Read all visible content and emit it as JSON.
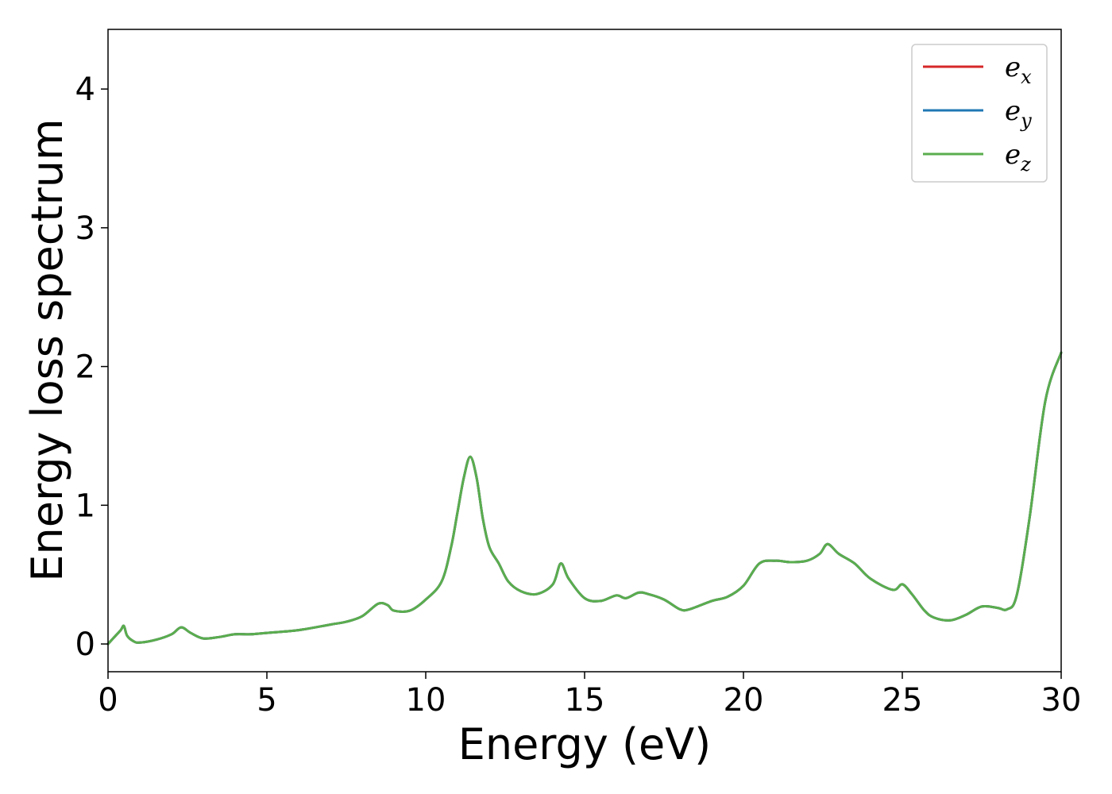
{
  "chart_data": {
    "type": "line",
    "title": "",
    "xlabel": "Energy (eV)",
    "ylabel": "Energy loss spectrum",
    "xlim": [
      0,
      30
    ],
    "ylim": [
      -0.2,
      4.43
    ],
    "xticks": [
      0,
      5,
      10,
      15,
      20,
      25,
      30
    ],
    "xtick_labels": [
      "0",
      "5",
      "10",
      "15",
      "20",
      "25",
      "30"
    ],
    "yticks": [
      0,
      1,
      2,
      3,
      4
    ],
    "ytick_labels": [
      "0",
      "1",
      "2",
      "3",
      "4"
    ],
    "grid": false,
    "legend_position": "top-right",
    "x": [
      0,
      0.2,
      0.4,
      0.5,
      0.6,
      0.8,
      1.0,
      1.5,
      2.0,
      2.3,
      2.6,
      3.0,
      3.5,
      4.0,
      4.5,
      5.0,
      6.0,
      7.0,
      7.5,
      8.0,
      8.5,
      8.8,
      9.0,
      9.5,
      10.0,
      10.5,
      10.8,
      11.0,
      11.2,
      11.4,
      11.6,
      11.8,
      12.0,
      12.3,
      12.6,
      13.0,
      13.5,
      14.0,
      14.25,
      14.5,
      15.0,
      15.5,
      16.0,
      16.3,
      16.7,
      17.0,
      17.5,
      18.0,
      18.3,
      19.0,
      19.5,
      20.0,
      20.5,
      21.0,
      21.5,
      22.0,
      22.4,
      22.65,
      23.0,
      23.5,
      24.0,
      24.7,
      25.0,
      25.3,
      25.7,
      26.0,
      26.5,
      27.0,
      27.5,
      28.0,
      28.3,
      28.6,
      29.0,
      29.5,
      30.0
    ],
    "series": [
      {
        "name": "e_x",
        "color": "#d62728",
        "values": [
          0.0,
          0.05,
          0.1,
          0.13,
          0.06,
          0.02,
          0.01,
          0.03,
          0.07,
          0.12,
          0.08,
          0.04,
          0.05,
          0.07,
          0.07,
          0.08,
          0.1,
          0.14,
          0.16,
          0.2,
          0.29,
          0.28,
          0.24,
          0.24,
          0.32,
          0.45,
          0.7,
          0.95,
          1.2,
          1.35,
          1.2,
          0.9,
          0.7,
          0.58,
          0.45,
          0.38,
          0.36,
          0.43,
          0.58,
          0.47,
          0.33,
          0.31,
          0.35,
          0.33,
          0.37,
          0.36,
          0.32,
          0.25,
          0.25,
          0.31,
          0.34,
          0.42,
          0.58,
          0.6,
          0.59,
          0.6,
          0.65,
          0.72,
          0.65,
          0.58,
          0.47,
          0.39,
          0.43,
          0.36,
          0.24,
          0.19,
          0.17,
          0.21,
          0.27,
          0.26,
          0.25,
          0.35,
          0.9,
          1.75,
          2.1
        ]
      },
      {
        "name": "e_y",
        "color": "#1f77b4",
        "values": [
          0.0,
          0.05,
          0.1,
          0.13,
          0.06,
          0.02,
          0.01,
          0.03,
          0.07,
          0.12,
          0.08,
          0.04,
          0.05,
          0.07,
          0.07,
          0.08,
          0.1,
          0.14,
          0.16,
          0.2,
          0.29,
          0.28,
          0.24,
          0.24,
          0.32,
          0.45,
          0.7,
          0.95,
          1.2,
          1.35,
          1.2,
          0.9,
          0.7,
          0.58,
          0.45,
          0.38,
          0.36,
          0.43,
          0.58,
          0.47,
          0.33,
          0.31,
          0.35,
          0.33,
          0.37,
          0.36,
          0.32,
          0.25,
          0.25,
          0.31,
          0.34,
          0.42,
          0.58,
          0.6,
          0.59,
          0.6,
          0.65,
          0.72,
          0.65,
          0.58,
          0.47,
          0.39,
          0.43,
          0.36,
          0.24,
          0.19,
          0.17,
          0.21,
          0.27,
          0.26,
          0.25,
          0.35,
          0.9,
          1.75,
          2.1
        ]
      },
      {
        "name": "e_z",
        "color": "#5aad4e",
        "values": [
          0.0,
          0.05,
          0.1,
          0.13,
          0.06,
          0.02,
          0.01,
          0.03,
          0.07,
          0.12,
          0.08,
          0.04,
          0.05,
          0.07,
          0.07,
          0.08,
          0.1,
          0.14,
          0.16,
          0.2,
          0.29,
          0.28,
          0.24,
          0.24,
          0.32,
          0.45,
          0.7,
          0.95,
          1.2,
          1.35,
          1.2,
          0.9,
          0.7,
          0.58,
          0.45,
          0.38,
          0.36,
          0.43,
          0.58,
          0.47,
          0.33,
          0.31,
          0.35,
          0.33,
          0.37,
          0.36,
          0.32,
          0.25,
          0.25,
          0.31,
          0.34,
          0.42,
          0.58,
          0.6,
          0.59,
          0.6,
          0.65,
          0.72,
          0.65,
          0.58,
          0.47,
          0.39,
          0.43,
          0.36,
          0.24,
          0.19,
          0.17,
          0.21,
          0.27,
          0.26,
          0.25,
          0.35,
          0.9,
          1.75,
          2.1
        ]
      }
    ],
    "legend": [
      {
        "base": "e",
        "sub": "x",
        "color": "#d62728"
      },
      {
        "base": "e",
        "sub": "y",
        "color": "#1f77b4"
      },
      {
        "base": "e",
        "sub": "z",
        "color": "#5aad4e"
      }
    ]
  }
}
